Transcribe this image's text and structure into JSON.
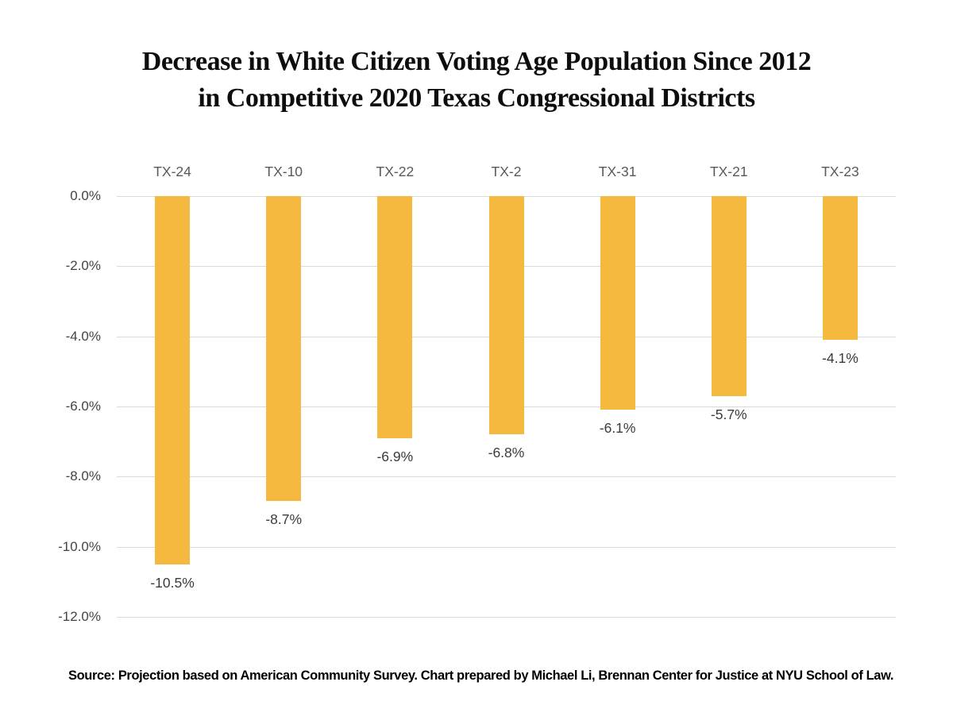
{
  "chart_data": {
    "type": "bar",
    "orientation": "vertical-negative",
    "title": "Decrease in White Citizen Voting Age Population Since 2012 in Competitive 2020 Texas Congressional Districts",
    "title_lines": [
      "Decrease in White Citizen Voting Age Population Since 2012",
      "in Competitive 2020 Texas Congressional Districts"
    ],
    "categories": [
      "TX-24",
      "TX-10",
      "TX-22",
      "TX-2",
      "TX-31",
      "TX-21",
      "TX-23"
    ],
    "values": [
      -10.5,
      -8.7,
      -6.9,
      -6.8,
      -6.1,
      -5.7,
      -4.1
    ],
    "data_labels": [
      "-10.5%",
      "-8.7%",
      "-6.9%",
      "-6.8%",
      "-6.1%",
      "-5.7%",
      "-4.1%"
    ],
    "y_ticks": [
      "0.0%",
      "-2.0%",
      "-4.0%",
      "-6.0%",
      "-8.0%",
      "-10.0%",
      "-12.0%"
    ],
    "y_tick_values": [
      0,
      -2,
      -4,
      -6,
      -8,
      -10,
      -12
    ],
    "ylim": [
      -12,
      0
    ],
    "xlabel": "",
    "ylabel": "",
    "grid": true,
    "legend": "none",
    "source": "Source: Projection based on American Community Survey. Chart prepared by Michael Li, Brennan Center for Justice at NYU School of Law."
  },
  "colors": {
    "bar": "#F5B93F",
    "gridline": "#DADADA",
    "title_text": "#0D0D0D",
    "tick_label": "#444444",
    "category_label": "#595959",
    "data_label": "#3B3B3B",
    "source_text": "#000000",
    "background": "#FFFFFF"
  }
}
